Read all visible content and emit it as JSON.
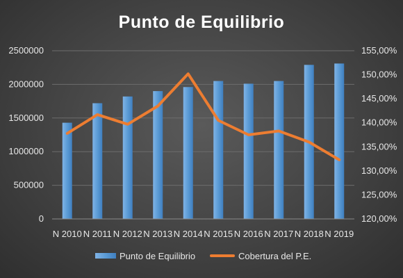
{
  "chart_data": {
    "type": "bar",
    "title": "Punto de Equilibrio",
    "categories": [
      "N 2010",
      "N 2011",
      "N 2012",
      "N 2013",
      "N 2014",
      "N 2015",
      "N 2016",
      "N 2017",
      "N 2018",
      "N 2019"
    ],
    "series": [
      {
        "name": "Punto de Equilibrio",
        "type": "bar",
        "axis": "left",
        "color": "#5b9bd5",
        "values": [
          1430000,
          1720000,
          1820000,
          1900000,
          1960000,
          2050000,
          2010000,
          2050000,
          2290000,
          2310000
        ]
      },
      {
        "name": "Cobertura del P.E.",
        "type": "line",
        "axis": "right",
        "color": "#ed7d31",
        "values": [
          137.8,
          141.7,
          139.7,
          143.5,
          150.2,
          140.5,
          137.5,
          138.3,
          136.0,
          132.3
        ]
      }
    ],
    "y_left": {
      "range": [
        0,
        2500000
      ],
      "ticks": [
        "0",
        "500000",
        "1000000",
        "1500000",
        "2000000",
        "2500000"
      ]
    },
    "y_right": {
      "range": [
        120,
        155
      ],
      "ticks": [
        "120,00%",
        "125,00%",
        "130,00%",
        "135,00%",
        "140,00%",
        "145,00%",
        "150,00%",
        "155,00%"
      ]
    },
    "grid": true,
    "legend_position": "bottom"
  }
}
